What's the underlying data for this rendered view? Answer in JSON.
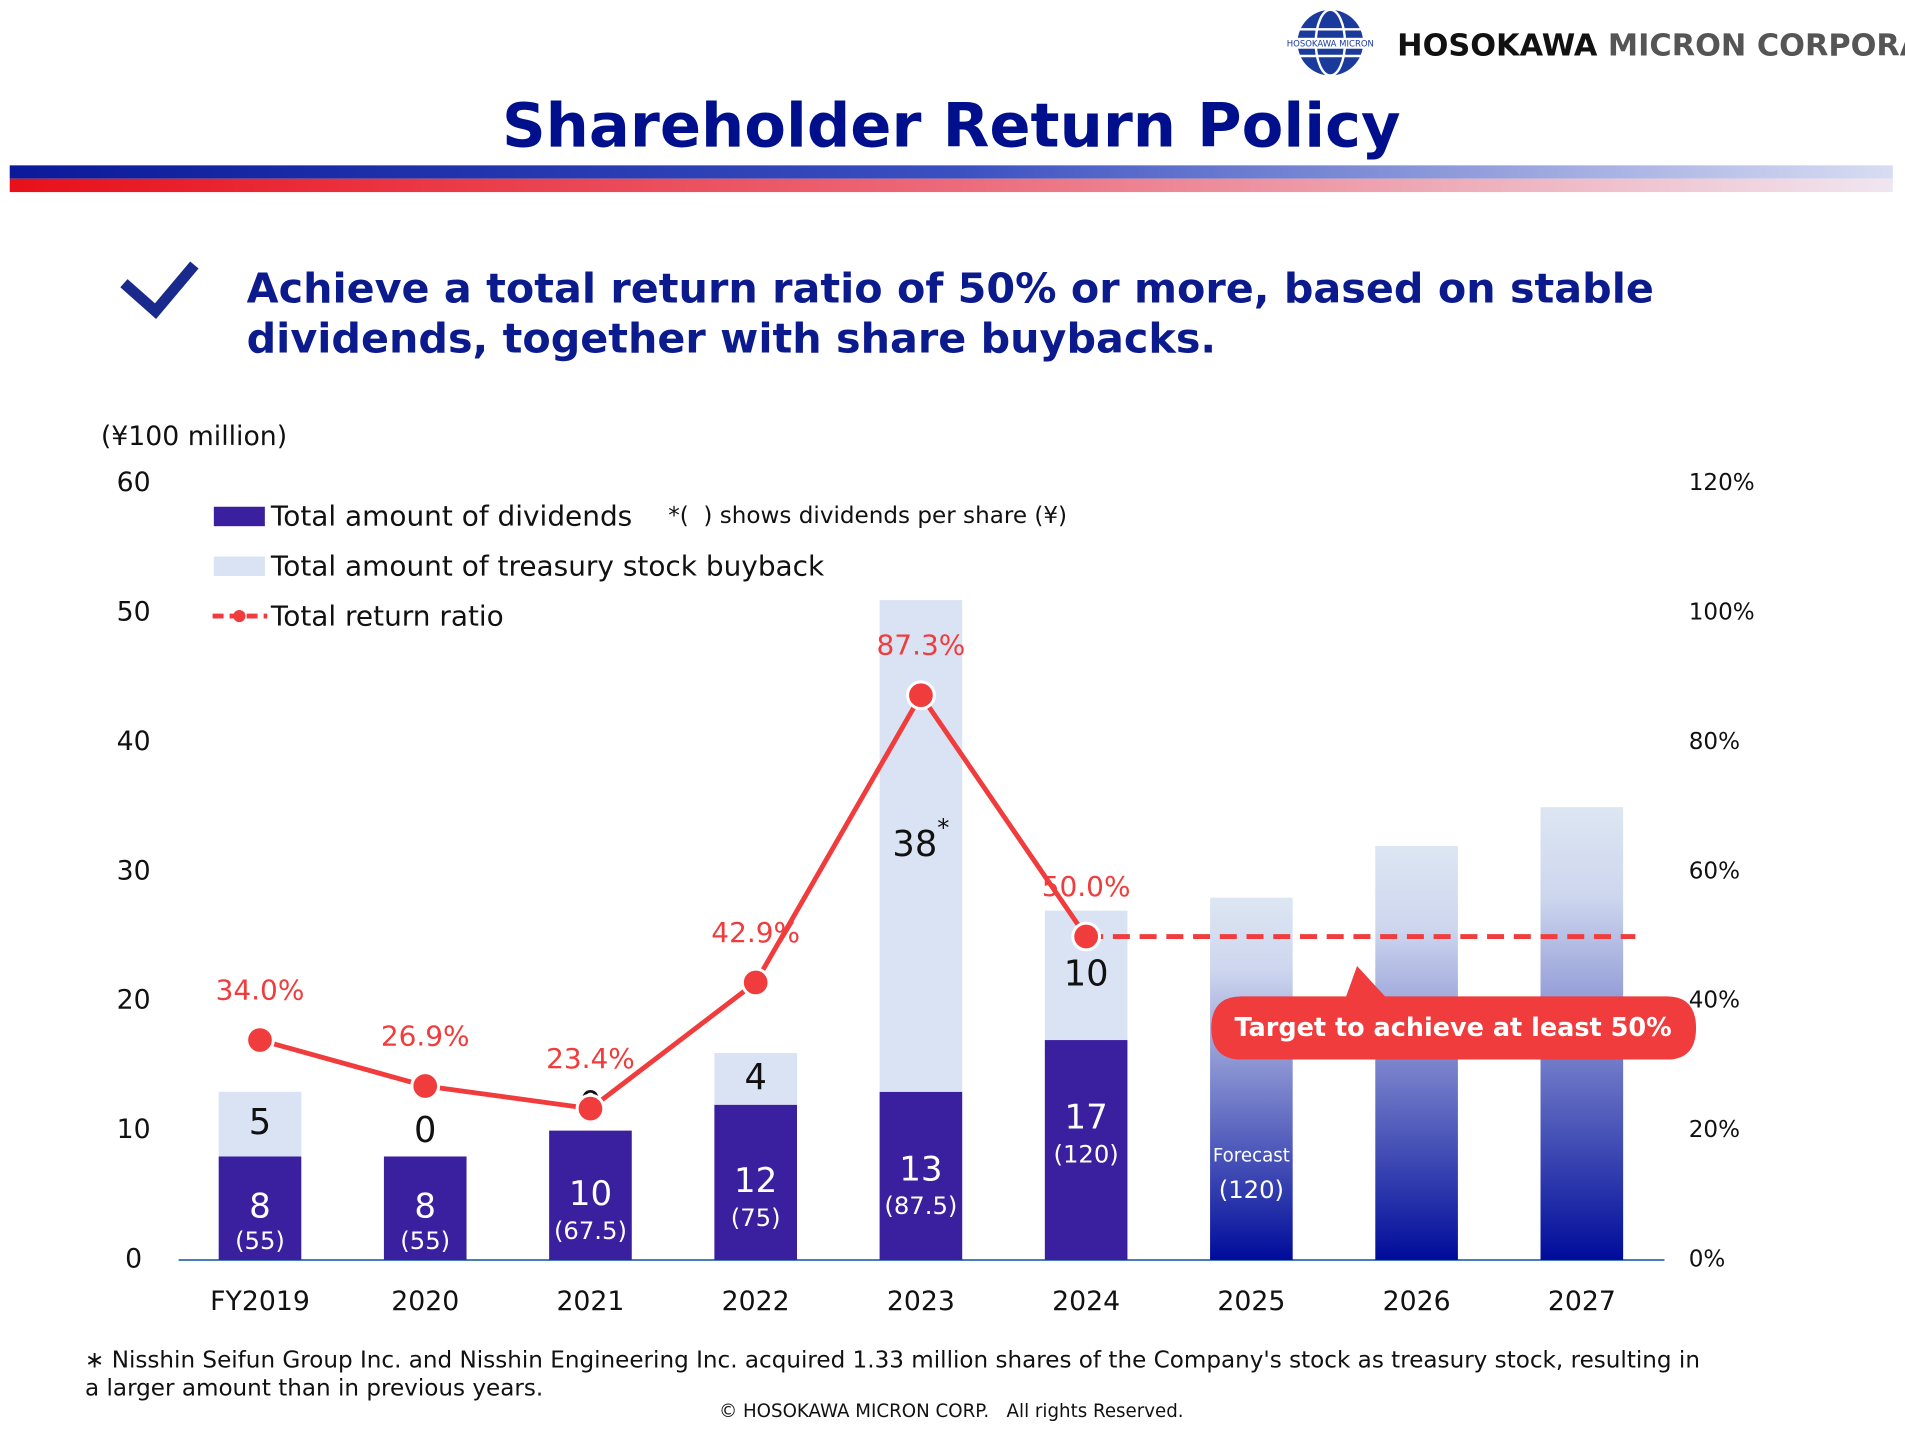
{
  "header": {
    "company_bold": "HOSOKAWA",
    "company_rest": "MICRON CORPORATION",
    "logo_text": "HOSOKAWA MICRON"
  },
  "title": "Shareholder Return Policy",
  "policy": {
    "line1": "Achieve a total return ratio of 50% or more, based on stable",
    "line2": "dividends, together with share buybacks."
  },
  "chart_data": {
    "type": "bar",
    "y_unit": "(¥100 million)",
    "categories": [
      "FY2019",
      "2020",
      "2021",
      "2022",
      "2023",
      "2024",
      "2025",
      "2026",
      "2027"
    ],
    "series": [
      {
        "name": "Total amount of dividends",
        "color": "#3a1f9e",
        "values": [
          8,
          8,
          10,
          12,
          13,
          17,
          null,
          null,
          null
        ]
      },
      {
        "name": "Total amount of treasury stock buyback",
        "color": "#dae3f3",
        "values": [
          5,
          0,
          0,
          4,
          38,
          10,
          null,
          null,
          null
        ]
      },
      {
        "name": "Total return ratio",
        "color": "#f03c3c",
        "axis": "y2",
        "values": [
          34.0,
          26.9,
          23.4,
          42.9,
          87.3,
          50.0,
          null,
          null,
          null
        ],
        "value_labels": [
          "34.0%",
          "26.9%",
          "23.4%",
          "42.9%",
          "87.3%",
          "50.0%",
          null,
          null,
          null
        ]
      }
    ],
    "buyback_note_marker": "*",
    "per_share_note": "*(  ) shows dividends per share (¥)",
    "per_share_labels": [
      "(55)",
      "(55)",
      "(67.5)",
      "(75)",
      "(87.5)",
      "(120)",
      "(120)",
      null,
      null
    ],
    "forecast_totals": [
      null,
      null,
      null,
      null,
      null,
      null,
      28,
      32,
      35
    ],
    "forecast_label": "Forecast",
    "target_ratio": 50,
    "target_label": "Target to achieve at least 50%",
    "ylim": [
      0,
      60
    ],
    "yticks": [
      0,
      10,
      20,
      30,
      40,
      50,
      60
    ],
    "y2lim": [
      0,
      120
    ],
    "y2ticks": [
      {
        "value": 0,
        "label": "0%"
      },
      {
        "value": 20,
        "label": "20%"
      },
      {
        "value": 40,
        "label": "40%"
      },
      {
        "value": 60,
        "label": "60%"
      },
      {
        "value": 80,
        "label": "80%"
      },
      {
        "value": 100,
        "label": "100%"
      },
      {
        "value": 120,
        "label": "120%"
      }
    ]
  },
  "footnote": {
    "line1": "∗ Nisshin Seifun Group Inc. and Nisshin Engineering Inc. acquired 1.33 million shares of the Company's stock as treasury stock, resulting in",
    "line2": "a larger amount than in previous years."
  },
  "copyright": "© HOSOKAWA MICRON CORP.   All rights Reserved."
}
